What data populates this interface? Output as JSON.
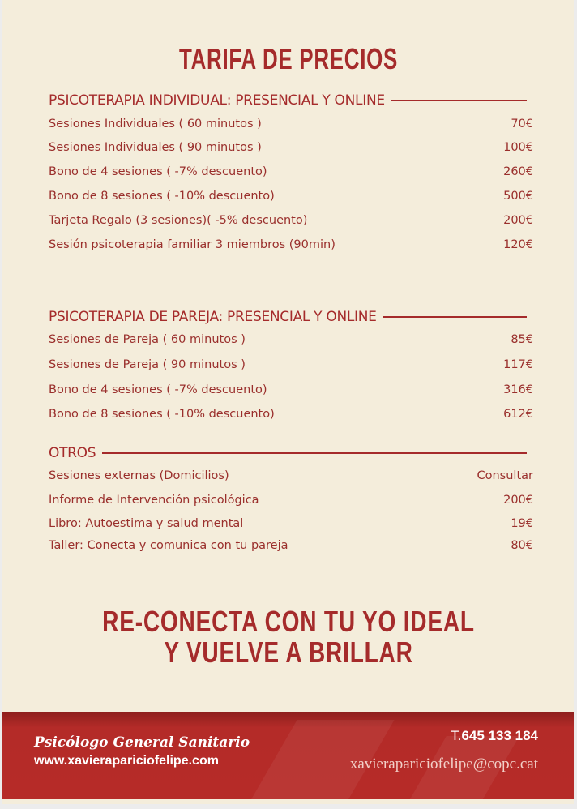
{
  "title": "TARIFA DE PRECIOS",
  "sections": [
    {
      "heading": "PSICOTERAPIA INDIVIDUAL: PRESENCIAL Y ONLINE",
      "items": [
        {
          "label": "Sesiones Individuales ( 60 minutos )",
          "price": "70€"
        },
        {
          "label": "Sesiones Individuales ( 90 minutos )",
          "price": "100€"
        },
        {
          "label": "Bono de 4 sesiones  ( -7% descuento)",
          "price": "260€"
        },
        {
          "label": "Bono de 8 sesiones ( -10% descuento)",
          "price": "500€"
        },
        {
          "label": "Tarjeta Regalo (3 sesiones)( -5% descuento)",
          "price": "200€"
        },
        {
          "label": "Sesión psicoterapia familiar 3 miembros (90min)",
          "price": "120€"
        }
      ]
    },
    {
      "heading": "PSICOTERAPIA DE PAREJA: PRESENCIAL Y ONLINE",
      "items": [
        {
          "label": "Sesiones de Pareja ( 60 minutos )",
          "price": "85€"
        },
        {
          "label": "Sesiones de Pareja ( 90 minutos )",
          "price": "117€"
        },
        {
          "label": "Bono de 4 sesiones  ( -7% descuento)",
          "price": "316€"
        },
        {
          "label": "Bono de 8 sesiones  ( -10% descuento)",
          "price": "612€"
        }
      ]
    },
    {
      "heading": "OTROS",
      "items": [
        {
          "label": "Sesiones externas (Domicilios)",
          "price": "Consultar"
        },
        {
          "label": "Informe de Intervención psicológica",
          "price": "200€"
        },
        {
          "label": "Libro: Autoestima y salud mental",
          "price": "19€"
        },
        {
          "label": "Taller: Conecta y comunica con tu pareja",
          "price": "80€"
        }
      ]
    }
  ],
  "slogan": {
    "line1": "RE-CONECTA CON TU YO IDEAL",
    "line2": "Y VUELVE A BRILLAR"
  },
  "footer": {
    "role": "Psicólogo General Sanitario",
    "website": "www.xavieraparICIofelipe.com",
    "phone_prefix": "T.",
    "phone": "645 133 184",
    "email": "xavieraparICIofelipe@copc.cat"
  },
  "colors": {
    "background": "#f4eddb",
    "accent": "#a52b2b",
    "footer": "#b62b28"
  }
}
